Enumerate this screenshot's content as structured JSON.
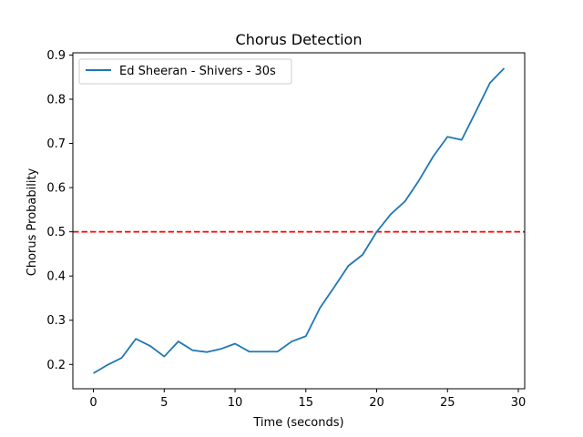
{
  "chart_data": {
    "type": "line",
    "title": "Chorus Detection",
    "xlabel": "Time (seconds)",
    "ylabel": "Chorus Probability",
    "xlim": [
      -1.45,
      30.45
    ],
    "ylim": [
      0.145,
      0.905
    ],
    "xticks": [
      0,
      5,
      10,
      15,
      20,
      25,
      30
    ],
    "yticks": [
      0.2,
      0.3,
      0.4,
      0.5,
      0.6,
      0.7,
      0.8,
      0.9
    ],
    "grid": false,
    "legend_position": "upper-left",
    "series": [
      {
        "name": "Ed Sheeran - Shivers - 30s",
        "color": "#1f77b4",
        "x": [
          0,
          1,
          2,
          3,
          4,
          5,
          6,
          7,
          8,
          9,
          10,
          11,
          12,
          13,
          14,
          15,
          16,
          17,
          18,
          19,
          20,
          21,
          22,
          23,
          24,
          25,
          26,
          27,
          28,
          29
        ],
        "values": [
          0.18,
          0.199,
          0.215,
          0.258,
          0.242,
          0.218,
          0.252,
          0.232,
          0.228,
          0.235,
          0.247,
          0.229,
          0.229,
          0.229,
          0.252,
          0.264,
          0.328,
          0.375,
          0.423,
          0.448,
          0.5,
          0.54,
          0.569,
          0.617,
          0.671,
          0.715,
          0.708,
          0.772,
          0.837,
          0.87
        ]
      }
    ],
    "threshold": {
      "value": 0.5,
      "color": "#ff0000",
      "style": "dashed"
    }
  }
}
